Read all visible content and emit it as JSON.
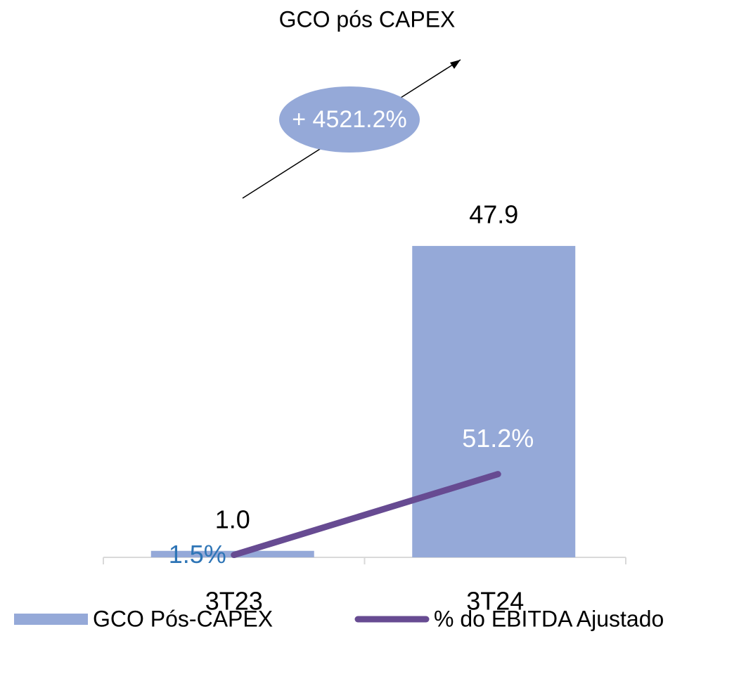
{
  "chart_data": {
    "type": "bar-line",
    "title": "GCO pós CAPEX",
    "categories": [
      "3T23",
      "3T24"
    ],
    "series": [
      {
        "name": "GCO Pós-CAPEX",
        "type": "bar",
        "color": "#95a9d8",
        "values": [
          1.0,
          47.9
        ],
        "value_labels": [
          "1.0",
          "47.9"
        ]
      },
      {
        "name": "% do EBITDA Ajustado",
        "type": "line",
        "axis": "y2",
        "color": "#674b92",
        "values": [
          1.5,
          51.2
        ],
        "value_labels": [
          "1.5%",
          "51.2%"
        ]
      }
    ],
    "ylim": [
      0,
      60
    ],
    "y2lim": [
      0,
      240
    ],
    "annotation": "+ 4521.2%"
  }
}
